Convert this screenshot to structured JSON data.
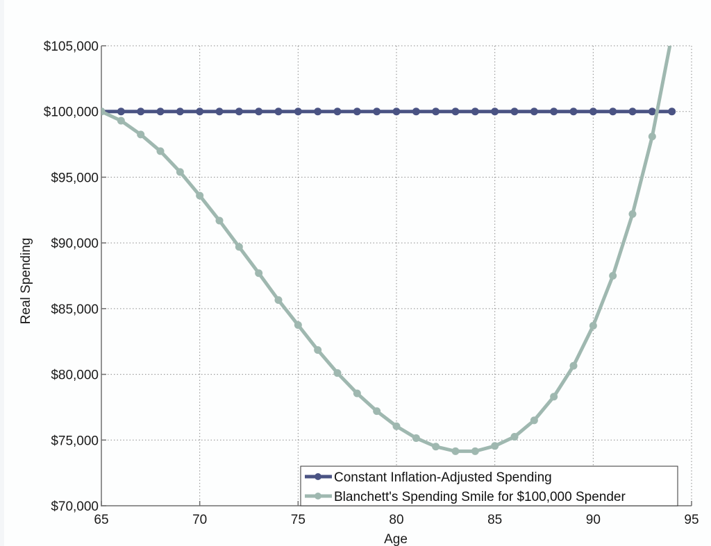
{
  "chart_data": {
    "type": "line",
    "title": "",
    "xlabel": "Age",
    "ylabel": "Real Spending",
    "xlim": [
      65,
      95
    ],
    "ylim": [
      70000,
      105000
    ],
    "grid": true,
    "legend_position": "lower right",
    "x_ticks": [
      65,
      70,
      75,
      80,
      85,
      90,
      95
    ],
    "y_ticks": [
      70000,
      75000,
      80000,
      85000,
      90000,
      95000,
      100000,
      105000
    ],
    "y_tick_labels": [
      "$70,000",
      "$75,000",
      "$80,000",
      "$85,000",
      "$90,000",
      "$95,000",
      "$100,000",
      "$105,000"
    ],
    "x": [
      65,
      66,
      67,
      68,
      69,
      70,
      71,
      72,
      73,
      74,
      75,
      76,
      77,
      78,
      79,
      80,
      81,
      82,
      83,
      84,
      85,
      86,
      87,
      88,
      89,
      90,
      91,
      92,
      93,
      94
    ],
    "series": [
      {
        "name": "Constant Inflation-Adjusted Spending",
        "color": "#4a5383",
        "values": [
          100000,
          100000,
          100000,
          100000,
          100000,
          100000,
          100000,
          100000,
          100000,
          100000,
          100000,
          100000,
          100000,
          100000,
          100000,
          100000,
          100000,
          100000,
          100000,
          100000,
          100000,
          100000,
          100000,
          100000,
          100000,
          100000,
          100000,
          100000,
          100000,
          100000
        ]
      },
      {
        "name": "Blanchett's Spending Smile for $100,000 Spender",
        "color": "#9fb8b0",
        "values": [
          100000,
          99300,
          98250,
          96980,
          95400,
          93600,
          91700,
          89700,
          87700,
          85650,
          83750,
          81850,
          80100,
          78550,
          77200,
          76050,
          75150,
          74500,
          74150,
          74150,
          74550,
          75250,
          76500,
          78300,
          80650,
          83700,
          87500,
          92200,
          98100,
          105800
        ]
      }
    ]
  },
  "legend": {
    "items": [
      {
        "label": "Constant Inflation-Adjusted Spending"
      },
      {
        "label": "Blanchett's Spending Smile for $100,000 Spender"
      }
    ]
  },
  "axes": {
    "xlabel": "Age",
    "ylabel": "Real Spending"
  }
}
